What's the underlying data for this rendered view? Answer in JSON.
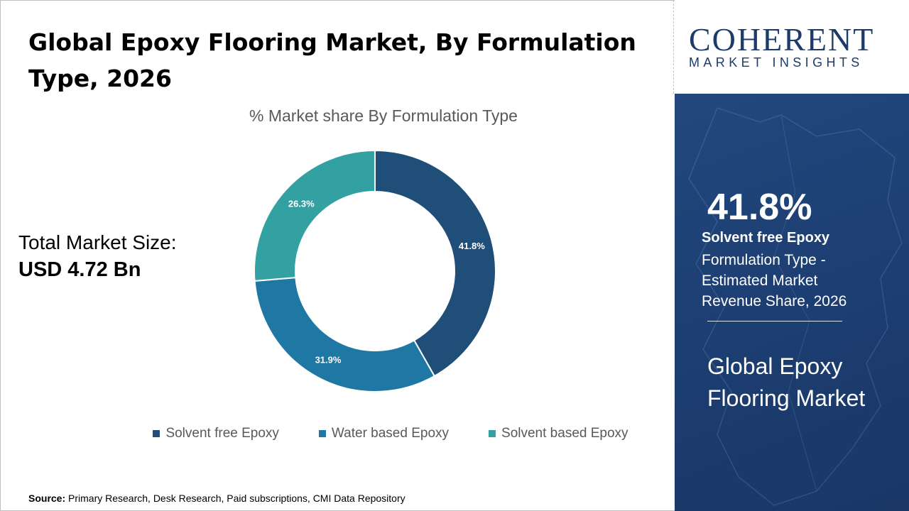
{
  "title": "Global Epoxy Flooring Market, By Formulation Type, 2026",
  "market_size": {
    "label": "Total Market Size:",
    "value": "USD 4.72 Bn"
  },
  "logo": {
    "name": "COHERENT",
    "tagline": "MARKET INSIGHTS"
  },
  "highlight": {
    "percent": "41.8%",
    "segment": "Solvent free Epoxy",
    "description": "Formulation Type - Estimated Market Revenue Share, 2026",
    "market_name": "Global Epoxy Flooring Market"
  },
  "source": {
    "label": "Source:",
    "text": "Primary Research, Desk Research, Paid subscriptions, CMI Data Repository"
  },
  "chart_data": {
    "type": "pie",
    "variant": "donut",
    "title": "% Market share By Formulation Type",
    "categories": [
      "Solvent free Epoxy",
      "Water based Epoxy",
      "Solvent based Epoxy"
    ],
    "values": [
      41.8,
      31.9,
      26.3
    ],
    "labels": [
      "41.8%",
      "31.9%",
      "26.3%"
    ],
    "colors": [
      "#1f4e79",
      "#1f77a4",
      "#33a1a1"
    ],
    "legend_position": "bottom"
  }
}
